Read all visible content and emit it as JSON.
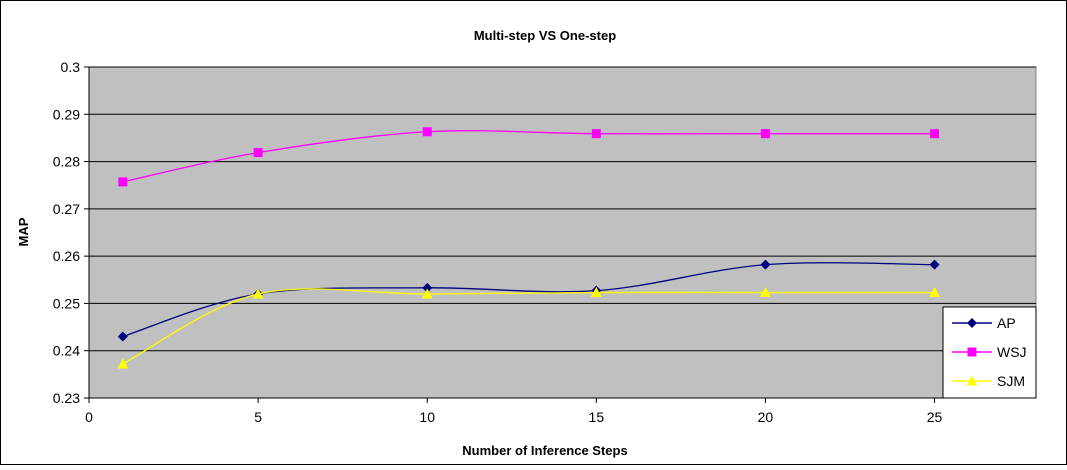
{
  "chart_data": {
    "type": "line",
    "title": "Multi-step VS One-step",
    "xlabel": "Number of Inference Steps",
    "ylabel": "MAP",
    "xlim": [
      0,
      28
    ],
    "ylim": [
      0.23,
      0.3
    ],
    "x_ticks": [
      0,
      5,
      10,
      15,
      20,
      25
    ],
    "y_ticks": [
      0.23,
      0.24,
      0.25,
      0.26,
      0.27,
      0.28,
      0.29,
      0.3
    ],
    "x_tick_labels": [
      "0",
      "5",
      "10",
      "15",
      "20",
      "25"
    ],
    "y_tick_labels": [
      "0.23",
      "0.24",
      "0.25",
      "0.26",
      "0.27",
      "0.28",
      "0.29",
      "0.3"
    ],
    "grid": true,
    "legend_position": "bottom-right",
    "plot_background": "#c0c0c0",
    "series": [
      {
        "name": "AP",
        "color": "#000080",
        "marker": "diamond",
        "x": [
          1,
          5,
          10,
          15,
          20,
          25
        ],
        "y": [
          0.243,
          0.252,
          0.2533,
          0.2527,
          0.2582,
          0.2582
        ]
      },
      {
        "name": "WSJ",
        "color": "#ff00ff",
        "marker": "square",
        "x": [
          1,
          5,
          10,
          15,
          20,
          25
        ],
        "y": [
          0.2757,
          0.2819,
          0.2863,
          0.2859,
          0.2859,
          0.2859
        ]
      },
      {
        "name": "SJM",
        "color": "#ffff00",
        "marker": "triangle",
        "x": [
          1,
          5,
          10,
          15,
          20,
          25
        ],
        "y": [
          0.2372,
          0.252,
          0.252,
          0.2523,
          0.2523,
          0.2523
        ]
      }
    ]
  }
}
